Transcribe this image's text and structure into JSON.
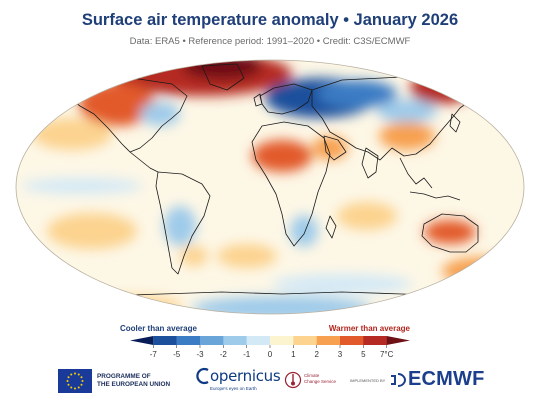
{
  "header": {
    "title": "Surface air temperature anomaly • January 2026",
    "subtitle": "Data: ERA5 • Reference period: 1991–2020 • Credit: C3S/ECMWF"
  },
  "legend": {
    "cool_label": "Cooler than average",
    "warm_label": "Warmer than average",
    "ticks": [
      "-7",
      "-5",
      "-3",
      "-2",
      "-1",
      "0",
      "1",
      "2",
      "3",
      "5",
      "7°C"
    ],
    "colors": [
      "#081d58",
      "#1c4f9c",
      "#3b7cc4",
      "#6aa5d9",
      "#9fcbea",
      "#d4e9f6",
      "#fbf4cf",
      "#fcd38f",
      "#f7a04f",
      "#e25a2b",
      "#b52a22",
      "#6e1116"
    ]
  },
  "map_colors": {
    "ocean_neutral": "#fdf7e6",
    "land_neutral": "#faecd0",
    "outline": "#b8b0a0",
    "coast": "#1a1a1a"
  },
  "footer": {
    "eu_line1": "PROGRAMME OF",
    "eu_line2": "THE EUROPEAN UNION",
    "copernicus_name": "opernicus",
    "copernicus_tag": "Europe's eyes on Earth",
    "c3s_line1": "Climate",
    "c3s_line2": "Change Service",
    "implemented_by": "IMPLEMENTED BY",
    "ecmwf": "ECMWF"
  }
}
